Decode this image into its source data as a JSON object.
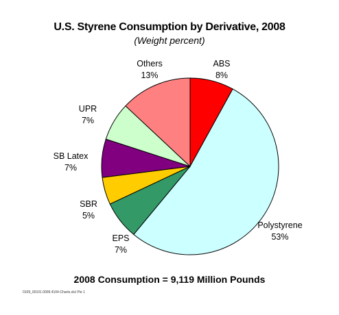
{
  "chart_data": {
    "type": "pie",
    "title": "U.S. Styrene Consumption by Derivative, 2008",
    "subtitle": "(Weight percent)",
    "slices": [
      {
        "name": "ABS",
        "value": 8,
        "label": "8%",
        "color": "#ff0000"
      },
      {
        "name": "Polystyrene",
        "value": 53,
        "label": "53%",
        "color": "#ccffff"
      },
      {
        "name": "EPS",
        "value": 7,
        "label": "7%",
        "color": "#339966"
      },
      {
        "name": "SBR",
        "value": 5,
        "label": "5%",
        "color": "#ffcc00"
      },
      {
        "name": "SB Latex",
        "value": 7,
        "label": "7%",
        "color": "#800080"
      },
      {
        "name": "UPR",
        "value": 7,
        "label": "7%",
        "color": "#ccffcc"
      },
      {
        "name": "Others",
        "value": 13,
        "label": "13%",
        "color": "#ff8080"
      }
    ],
    "footer": "2008 Consumption = 9,119 Million Pounds",
    "file_reference": "0109_00101.0009.4104-Charts.xls/ Pie 1"
  }
}
